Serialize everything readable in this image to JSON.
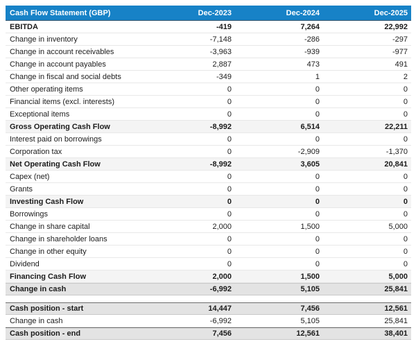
{
  "colors": {
    "header_bg": "#1782c7",
    "header_text": "#ffffff",
    "section_bg": "#f4f4f4",
    "total_bg": "#e3e3e3",
    "divider": "#e8e8e8",
    "text": "#1c1c1c"
  },
  "chart_data": {
    "type": "table",
    "title": "Cash Flow Statement (GBP)",
    "columns": [
      "Dec-2023",
      "Dec-2024",
      "Dec-2025"
    ],
    "rows": [
      {
        "label": "EBITDA",
        "values": [
          "-419",
          "7,264",
          "22,992"
        ],
        "style": "bold"
      },
      {
        "label": "Change in inventory",
        "values": [
          "-7,148",
          "-286",
          "-297"
        ],
        "style": "normal"
      },
      {
        "label": "Change in account receivables",
        "values": [
          "-3,963",
          "-939",
          "-977"
        ],
        "style": "normal"
      },
      {
        "label": "Change in account payables",
        "values": [
          "2,887",
          "473",
          "491"
        ],
        "style": "normal"
      },
      {
        "label": "Change in fiscal and social debts",
        "values": [
          "-349",
          "1",
          "2"
        ],
        "style": "normal"
      },
      {
        "label": "Other operating items",
        "values": [
          "0",
          "0",
          "0"
        ],
        "style": "normal"
      },
      {
        "label": "Financial items (excl. interests)",
        "values": [
          "0",
          "0",
          "0"
        ],
        "style": "normal"
      },
      {
        "label": "Exceptional items",
        "values": [
          "0",
          "0",
          "0"
        ],
        "style": "normal"
      },
      {
        "label": "Gross Operating Cash Flow",
        "values": [
          "-8,992",
          "6,514",
          "22,211"
        ],
        "style": "section"
      },
      {
        "label": "Interest paid on borrowings",
        "values": [
          "0",
          "0",
          "0"
        ],
        "style": "normal"
      },
      {
        "label": "Corporation tax",
        "values": [
          "0",
          "-2,909",
          "-1,370"
        ],
        "style": "normal"
      },
      {
        "label": "Net Operating Cash Flow",
        "values": [
          "-8,992",
          "3,605",
          "20,841"
        ],
        "style": "section"
      },
      {
        "label": "Capex (net)",
        "values": [
          "0",
          "0",
          "0"
        ],
        "style": "normal"
      },
      {
        "label": "Grants",
        "values": [
          "0",
          "0",
          "0"
        ],
        "style": "normal"
      },
      {
        "label": "Investing Cash Flow",
        "values": [
          "0",
          "0",
          "0"
        ],
        "style": "section"
      },
      {
        "label": "Borrowings",
        "values": [
          "0",
          "0",
          "0"
        ],
        "style": "normal"
      },
      {
        "label": "Change in share capital",
        "values": [
          "2,000",
          "1,500",
          "5,000"
        ],
        "style": "normal"
      },
      {
        "label": "Change in shareholder loans",
        "values": [
          "0",
          "0",
          "0"
        ],
        "style": "normal"
      },
      {
        "label": "Change in other equity",
        "values": [
          "0",
          "0",
          "0"
        ],
        "style": "normal"
      },
      {
        "label": "Dividend",
        "values": [
          "0",
          "0",
          "0"
        ],
        "style": "normal"
      },
      {
        "label": "Financing Cash Flow",
        "values": [
          "2,000",
          "1,500",
          "5,000"
        ],
        "style": "section"
      },
      {
        "label": "Change in cash",
        "values": [
          "-6,992",
          "5,105",
          "25,841"
        ],
        "style": "total"
      }
    ],
    "footer_rows": [
      {
        "label": "Cash position - start",
        "values": [
          "14,447",
          "7,456",
          "12,561"
        ],
        "style": "total-strong"
      },
      {
        "label": "Change in cash",
        "values": [
          "-6,992",
          "5,105",
          "25,841"
        ],
        "style": "normal"
      },
      {
        "label": "Cash position - end",
        "values": [
          "7,456",
          "12,561",
          "38,401"
        ],
        "style": "total-strong"
      }
    ]
  }
}
